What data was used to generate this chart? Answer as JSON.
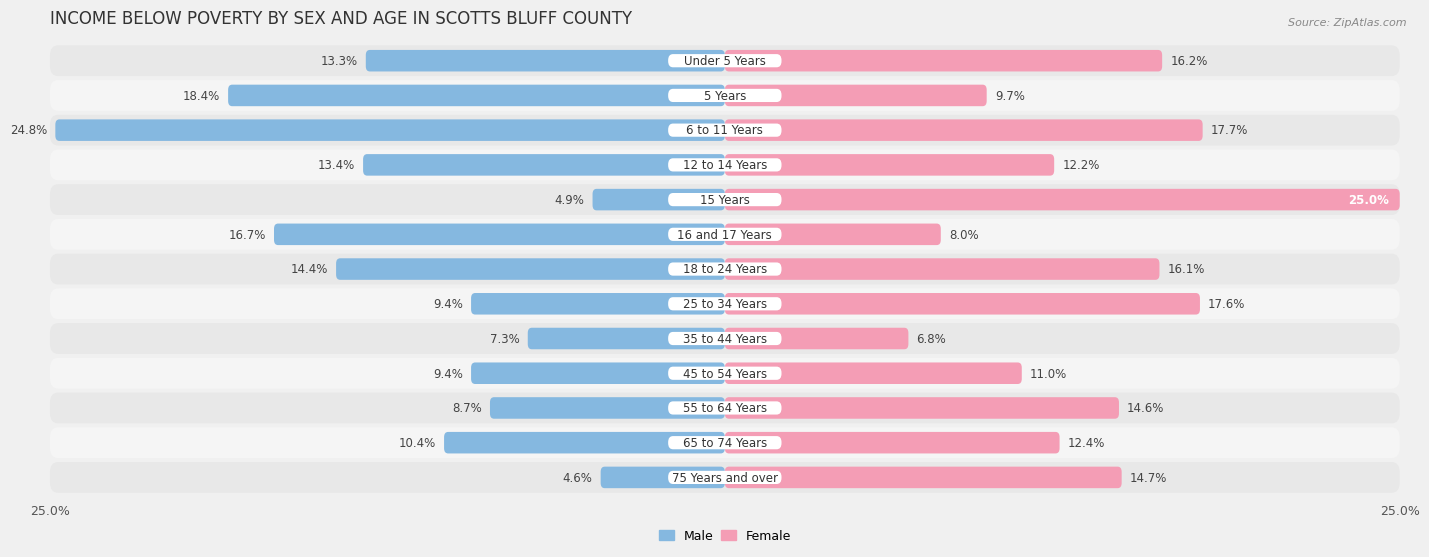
{
  "title": "INCOME BELOW POVERTY BY SEX AND AGE IN SCOTTS BLUFF COUNTY",
  "source": "Source: ZipAtlas.com",
  "categories": [
    "Under 5 Years",
    "5 Years",
    "6 to 11 Years",
    "12 to 14 Years",
    "15 Years",
    "16 and 17 Years",
    "18 to 24 Years",
    "25 to 34 Years",
    "35 to 44 Years",
    "45 to 54 Years",
    "55 to 64 Years",
    "65 to 74 Years",
    "75 Years and over"
  ],
  "male": [
    13.3,
    18.4,
    24.8,
    13.4,
    4.9,
    16.7,
    14.4,
    9.4,
    7.3,
    9.4,
    8.7,
    10.4,
    4.6
  ],
  "female": [
    16.2,
    9.7,
    17.7,
    12.2,
    25.0,
    8.0,
    16.1,
    17.6,
    6.8,
    11.0,
    14.6,
    12.4,
    14.7
  ],
  "male_color": "#85b8e0",
  "female_color": "#f49db5",
  "bg_row_odd": "#e8e8e8",
  "bg_row_even": "#f5f5f5",
  "max_val": 25.0,
  "bar_height": 0.62,
  "title_fontsize": 12,
  "label_fontsize": 8.5,
  "tick_fontsize": 9,
  "source_fontsize": 8,
  "cat_label_fontsize": 8.5
}
